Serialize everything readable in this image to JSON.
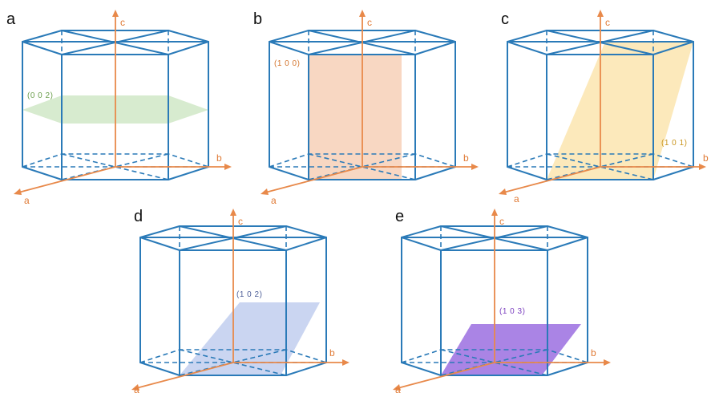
{
  "panels": [
    {
      "letter": "a",
      "plane_label": "(0 0 2)",
      "plane_color": "#c9e4bf",
      "plane_opacity": 0.75,
      "label_color": "#6b9e4c"
    },
    {
      "letter": "b",
      "plane_label": "(1 0 0)",
      "plane_color": "#f6c9ad",
      "plane_opacity": 0.75,
      "label_color": "#d4762f"
    },
    {
      "letter": "c",
      "plane_label": "(1 0 1)",
      "plane_color": "#fbe1a4",
      "plane_opacity": 0.75,
      "label_color": "#c9951e"
    },
    {
      "letter": "d",
      "plane_label": "(1 0 2)",
      "plane_color": "#b8c7ec",
      "plane_opacity": 0.75,
      "label_color": "#4e5f98"
    },
    {
      "letter": "e",
      "plane_label": "(1 0 3)",
      "plane_color": "#9b6ee0",
      "plane_opacity": 0.85,
      "label_color": "#7b3fbf"
    }
  ],
  "axes": {
    "a": "a",
    "b": "b",
    "c": "c"
  },
  "colors": {
    "cell_edge": "#2a7ab8",
    "axis": "#e8894a"
  }
}
